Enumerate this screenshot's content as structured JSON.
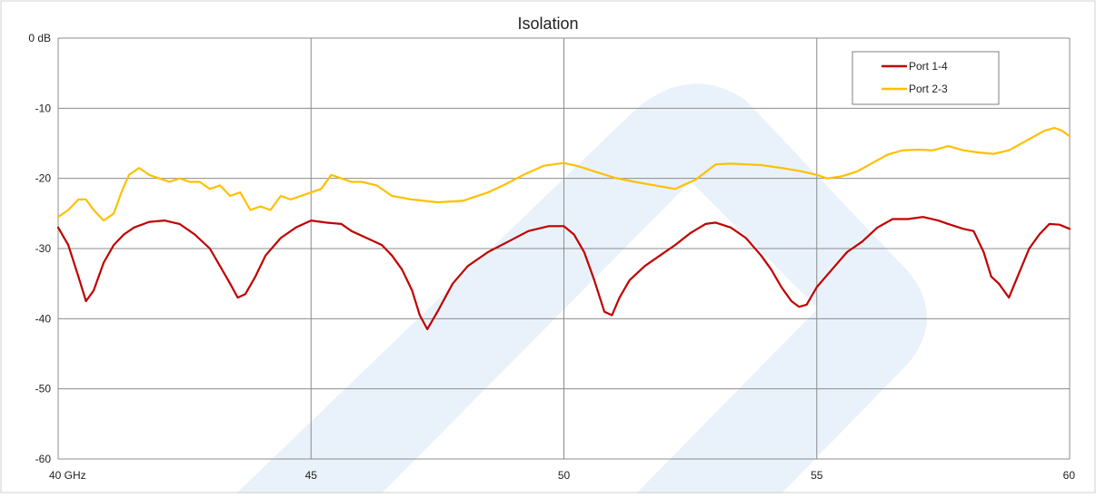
{
  "chart_data": {
    "type": "line",
    "title": "Isolation",
    "xlabel": "",
    "ylabel": "",
    "xlim": [
      40,
      60
    ],
    "ylim": [
      -60,
      0
    ],
    "x_ticks": [
      40,
      45,
      50,
      55,
      60
    ],
    "x_tick_labels": [
      "40 GHz",
      "45",
      "50",
      "55",
      "60"
    ],
    "y_ticks": [
      0,
      -10,
      -20,
      -30,
      -40,
      -50,
      -60
    ],
    "y_tick_labels": [
      "0 dB",
      "-10",
      "-20",
      "-30",
      "-40",
      "-50",
      "-60"
    ],
    "grid": true,
    "legend_position": "top-right",
    "series": [
      {
        "name": "Port 1-4",
        "color": "#c00000",
        "x": [
          40.0,
          40.2,
          40.4,
          40.55,
          40.7,
          40.9,
          41.1,
          41.3,
          41.5,
          41.8,
          42.1,
          42.4,
          42.7,
          43.0,
          43.2,
          43.4,
          43.55,
          43.7,
          43.9,
          44.1,
          44.4,
          44.7,
          45.0,
          45.3,
          45.6,
          45.8,
          46.1,
          46.4,
          46.6,
          46.8,
          47.0,
          47.15,
          47.3,
          47.5,
          47.8,
          48.1,
          48.5,
          48.9,
          49.3,
          49.7,
          50.0,
          50.2,
          50.4,
          50.6,
          50.8,
          50.95,
          51.1,
          51.3,
          51.6,
          51.9,
          52.2,
          52.5,
          52.8,
          53.0,
          53.3,
          53.6,
          53.9,
          54.1,
          54.3,
          54.5,
          54.65,
          54.8,
          55.0,
          55.3,
          55.6,
          55.9,
          56.2,
          56.5,
          56.8,
          57.1,
          57.4,
          57.6,
          57.9,
          58.1,
          58.3,
          58.45,
          58.6,
          58.8,
          59.0,
          59.2,
          59.4,
          59.6,
          59.8,
          60.0
        ],
        "y": [
          -27.0,
          -29.5,
          -34.0,
          -37.5,
          -36.0,
          -32.0,
          -29.5,
          -28.0,
          -27.0,
          -26.2,
          -26.0,
          -26.5,
          -28.0,
          -30.0,
          -32.5,
          -35.0,
          -37.0,
          -36.5,
          -34.0,
          -31.0,
          -28.5,
          -27.0,
          -26.0,
          -26.3,
          -26.5,
          -27.5,
          -28.5,
          -29.5,
          -31.0,
          -33.0,
          -36.0,
          -39.5,
          -41.5,
          -39.0,
          -35.0,
          -32.5,
          -30.5,
          -29.0,
          -27.5,
          -26.8,
          -26.8,
          -28.0,
          -30.5,
          -34.5,
          -39.0,
          -39.5,
          -37.0,
          -34.5,
          -32.5,
          -31.0,
          -29.5,
          -27.8,
          -26.5,
          -26.3,
          -27.0,
          -28.5,
          -31.0,
          -33.0,
          -35.5,
          -37.5,
          -38.3,
          -38.0,
          -35.5,
          -33.0,
          -30.5,
          -29.0,
          -27.0,
          -25.8,
          -25.8,
          -25.5,
          -26.0,
          -26.5,
          -27.2,
          -27.5,
          -30.5,
          -34.0,
          -35.0,
          -37.0,
          -33.5,
          -30.0,
          -28.0,
          -26.5,
          -26.6,
          -27.2
        ]
      },
      {
        "name": "Port 2-3",
        "color": "#ffc000",
        "x": [
          40.0,
          40.2,
          40.4,
          40.55,
          40.7,
          40.9,
          41.1,
          41.25,
          41.4,
          41.6,
          41.8,
          42.0,
          42.2,
          42.4,
          42.6,
          42.8,
          43.0,
          43.2,
          43.4,
          43.6,
          43.8,
          44.0,
          44.2,
          44.4,
          44.6,
          44.8,
          45.0,
          45.2,
          45.4,
          45.6,
          45.8,
          46.0,
          46.3,
          46.6,
          47.0,
          47.5,
          48.0,
          48.5,
          48.8,
          49.2,
          49.6,
          50.0,
          50.3,
          50.6,
          51.0,
          51.4,
          51.8,
          52.2,
          52.6,
          53.0,
          53.3,
          53.6,
          53.9,
          54.3,
          54.7,
          55.0,
          55.2,
          55.5,
          55.8,
          56.1,
          56.4,
          56.7,
          57.0,
          57.3,
          57.6,
          57.9,
          58.2,
          58.5,
          58.8,
          59.1,
          59.3,
          59.5,
          59.7,
          59.85,
          60.0
        ],
        "y": [
          -25.5,
          -24.5,
          -23.0,
          -23.0,
          -24.5,
          -26.0,
          -25.0,
          -22.0,
          -19.5,
          -18.5,
          -19.5,
          -20.0,
          -20.5,
          -20.0,
          -20.5,
          -20.5,
          -21.5,
          -21.0,
          -22.5,
          -22.0,
          -24.5,
          -24.0,
          -24.5,
          -22.5,
          -23.0,
          -22.5,
          -22.0,
          -21.5,
          -19.5,
          -20.0,
          -20.5,
          -20.5,
          -21.0,
          -22.5,
          -23.0,
          -23.4,
          -23.2,
          -22.0,
          -21.0,
          -19.5,
          -18.2,
          -17.8,
          -18.3,
          -19.0,
          -19.9,
          -20.5,
          -21.0,
          -21.5,
          -20.2,
          -18.0,
          -17.9,
          -18.0,
          -18.1,
          -18.5,
          -19.0,
          -19.5,
          -20.0,
          -19.7,
          -19.0,
          -17.8,
          -16.6,
          -16.0,
          -15.9,
          -16.0,
          -15.4,
          -16.0,
          -16.3,
          -16.5,
          -16.0,
          -14.8,
          -14.0,
          -13.2,
          -12.8,
          -13.2,
          -14.0
        ]
      }
    ]
  }
}
